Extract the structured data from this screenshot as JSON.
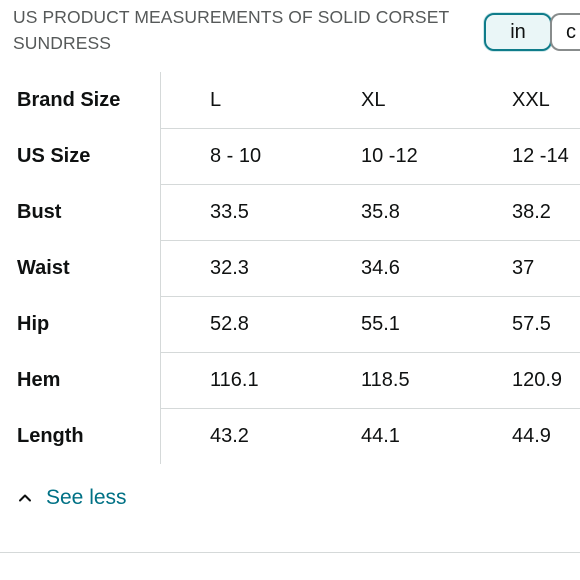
{
  "title": "US PRODUCT MEASUREMENTS OF SOLID CORSET SUNDRESS",
  "unit_toggle": {
    "selected": "in",
    "options": [
      "in",
      "c"
    ]
  },
  "table": {
    "rows": [
      {
        "label": "Brand Size",
        "values": [
          "L",
          "XL",
          "XXL"
        ]
      },
      {
        "label": "US Size",
        "values": [
          "8 - 10",
          "10 -12",
          "12 -14"
        ]
      },
      {
        "label": "Bust",
        "values": [
          "33.5",
          "35.8",
          "38.2"
        ]
      },
      {
        "label": "Waist",
        "values": [
          "32.3",
          "34.6",
          "37"
        ]
      },
      {
        "label": "Hip",
        "values": [
          "52.8",
          "55.1",
          "57.5"
        ]
      },
      {
        "label": "Hem",
        "values": [
          "116.1",
          "118.5",
          "120.9"
        ]
      },
      {
        "label": "Length",
        "values": [
          "43.2",
          "44.1",
          "44.9"
        ]
      }
    ]
  },
  "see_less": {
    "label": "See less",
    "icon": "chevron-up-icon"
  },
  "colors": {
    "link": "#007185",
    "accent": "#0f7c8a",
    "divider": "#d5d9d9"
  }
}
